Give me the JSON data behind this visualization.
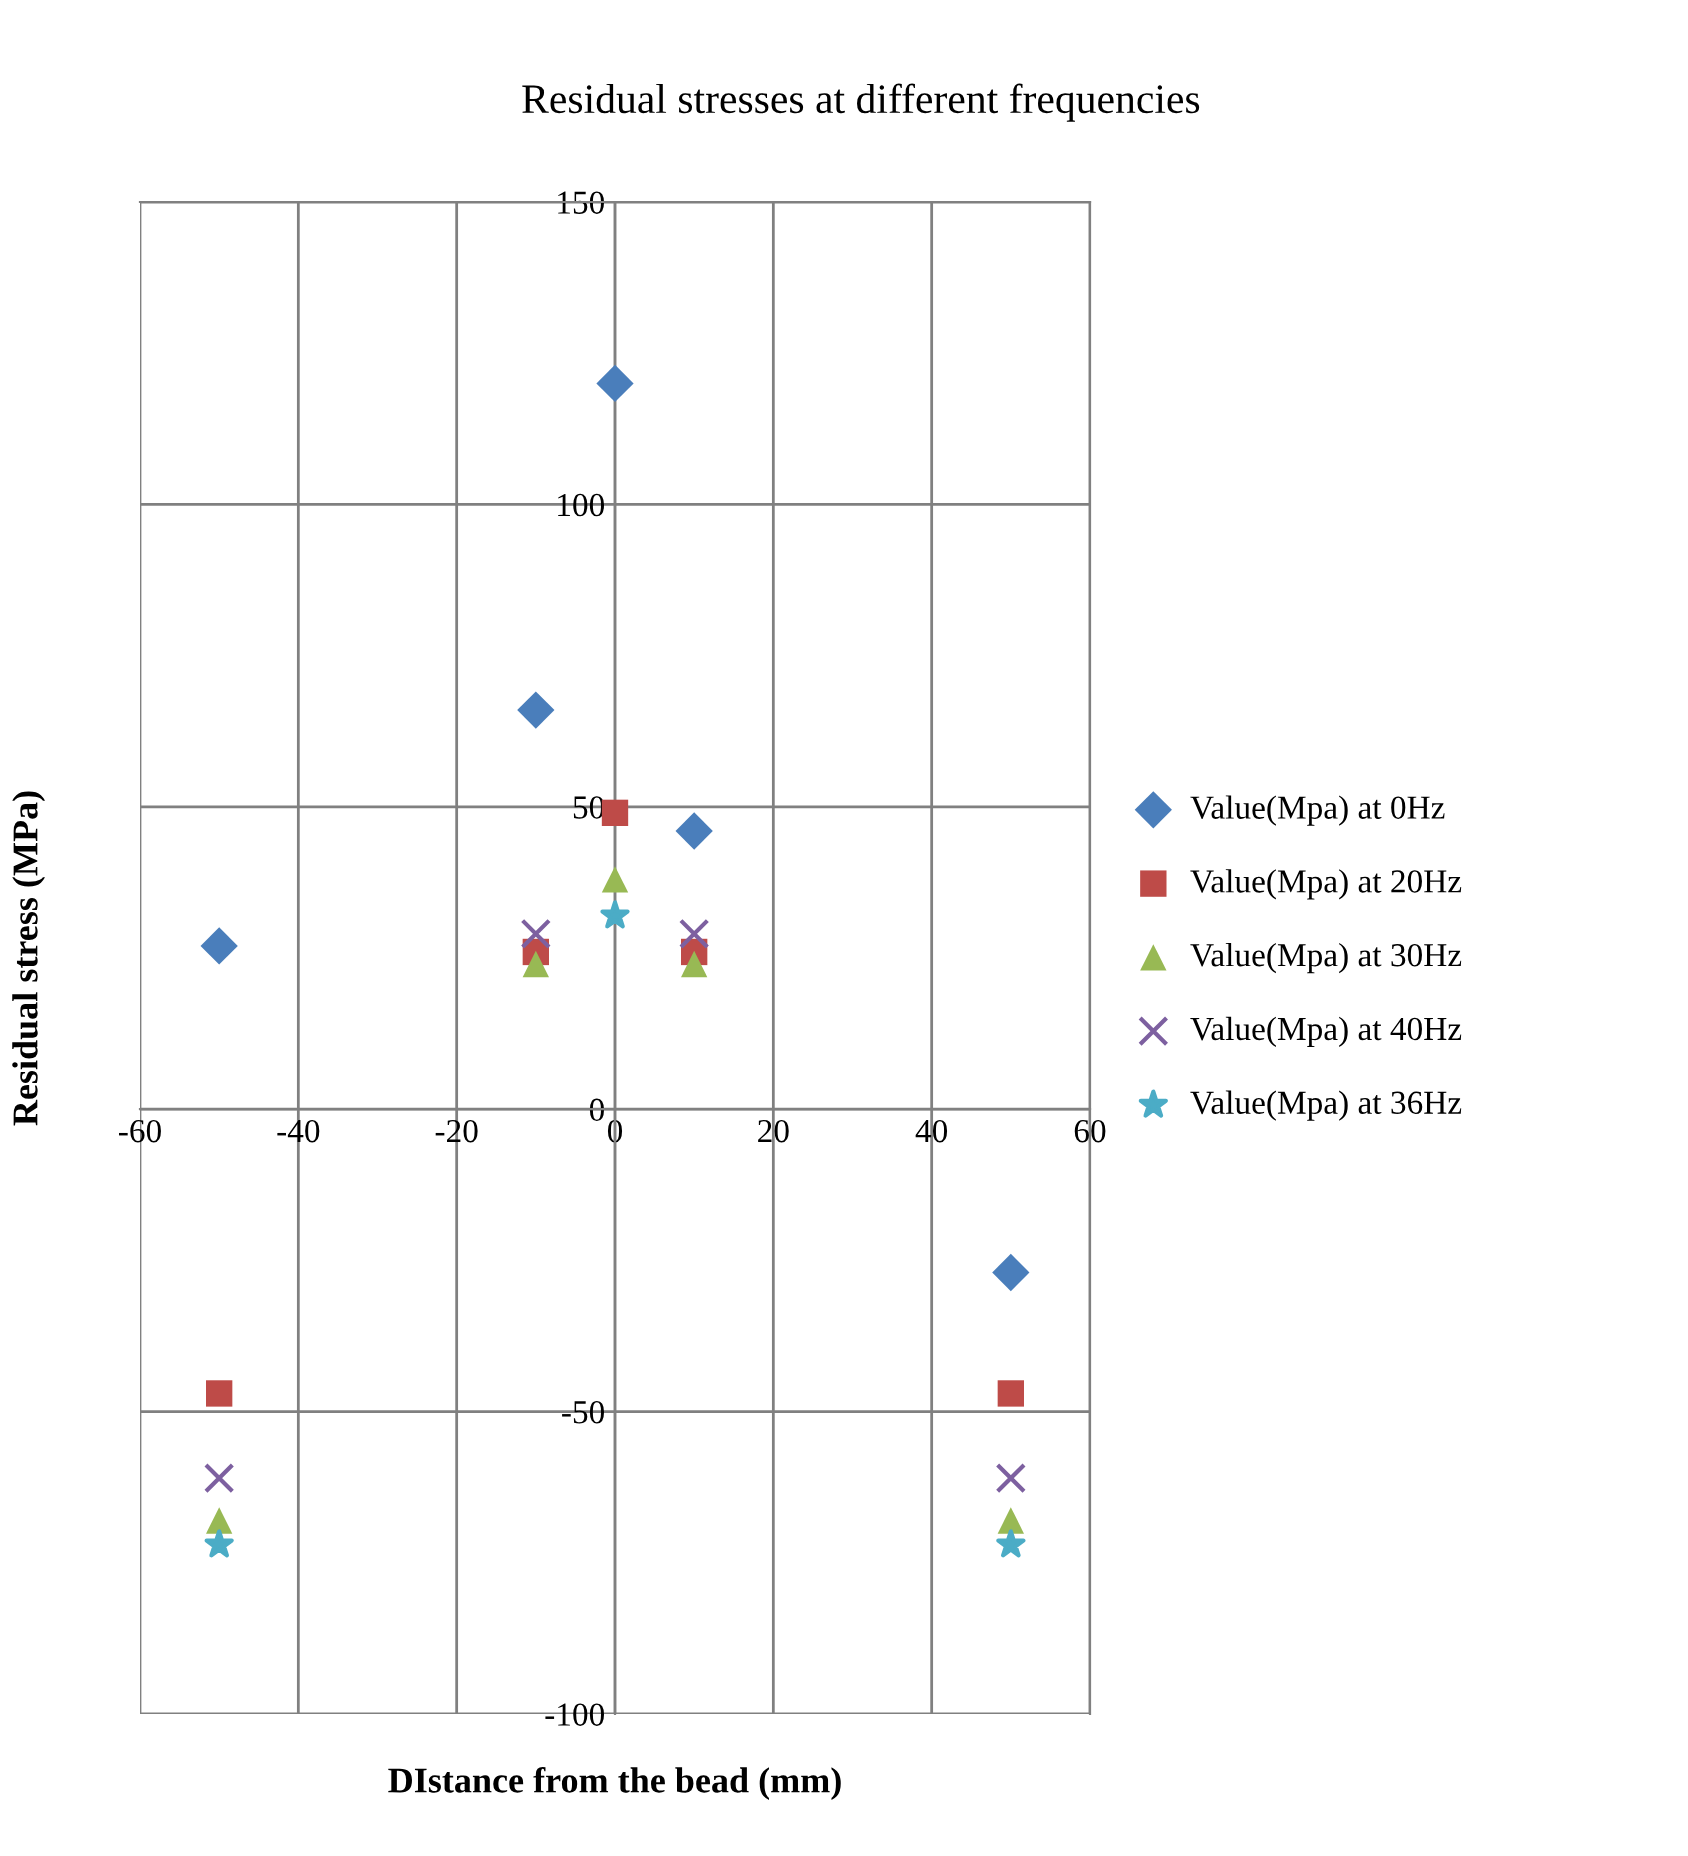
{
  "chart_data": {
    "type": "scatter",
    "title": "Residual stresses at different frequencies",
    "xlabel": "DIstance from the bead (mm)",
    "ylabel": "Residual stress (MPa)",
    "x": [
      -50,
      -10,
      0,
      10,
      50
    ],
    "series": [
      {
        "name": "Value(Mpa) at 0Hz",
        "color": "#4a7ebb",
        "marker": "diamond",
        "values": [
          27,
          66,
          120,
          46,
          -27
        ]
      },
      {
        "name": "Value(Mpa) at 20Hz",
        "color": "#be4b48",
        "marker": "square",
        "values": [
          -47,
          26,
          49,
          26,
          -47
        ]
      },
      {
        "name": "Value(Mpa) at 30Hz",
        "color": "#98b954",
        "marker": "triangle",
        "values": [
          -68,
          24,
          38,
          24,
          -68
        ]
      },
      {
        "name": "Value(Mpa) at 40Hz",
        "color": "#7d60a0",
        "marker": "cross",
        "values": [
          -61,
          29,
          null,
          29,
          -61
        ]
      },
      {
        "name": "Value(Mpa) at 36Hz",
        "color": "#4bacc6",
        "marker": "star",
        "values": [
          -72,
          null,
          32,
          null,
          -72
        ]
      }
    ],
    "xlim": [
      -60,
      60
    ],
    "xticks": [
      -60,
      -40,
      -20,
      0,
      20,
      40,
      60
    ],
    "ylim": [
      -100,
      150
    ],
    "yticks": [
      -100,
      -50,
      0,
      50,
      100,
      150
    ],
    "grid": true,
    "legend": "right"
  }
}
